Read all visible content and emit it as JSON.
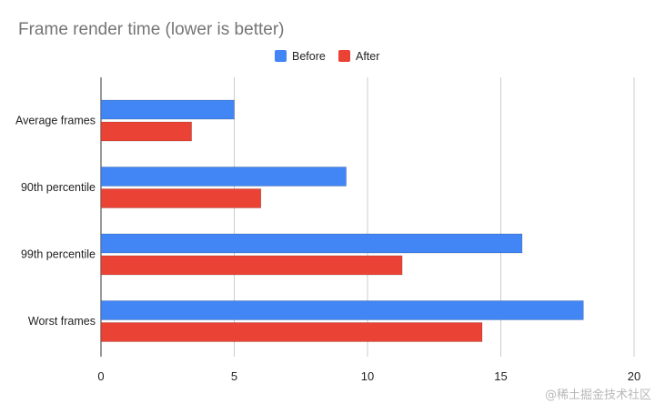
{
  "chart_data": {
    "type": "bar",
    "orientation": "horizontal",
    "title": "Frame render time (lower is better)",
    "categories": [
      "Average frames",
      "90th percentile",
      "99th percentile",
      "Worst frames"
    ],
    "series": [
      {
        "name": "Before",
        "color": "#4285f4",
        "values": [
          5.0,
          9.2,
          15.8,
          18.1
        ]
      },
      {
        "name": "After",
        "color": "#ea4335",
        "values": [
          3.4,
          6.0,
          11.3,
          14.3
        ]
      }
    ],
    "xlim": [
      0,
      20
    ],
    "xticks": [
      0,
      5,
      10,
      15,
      20
    ],
    "xlabel": "",
    "ylabel": "",
    "grid": "vertical",
    "legend_position": "top-center"
  },
  "watermark": "@稀土掘金技术社区"
}
